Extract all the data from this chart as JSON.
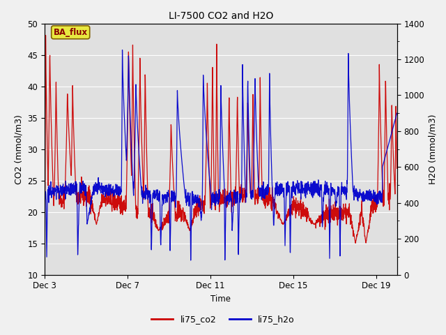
{
  "title": "LI-7500 CO2 and H2O",
  "xlabel": "Time",
  "ylabel_left": "CO2 (mmol/m3)",
  "ylabel_right": "H2O (mmol/m3)",
  "ylim_left": [
    10,
    50
  ],
  "ylim_right": [
    0,
    1400
  ],
  "yticks_left": [
    10,
    15,
    20,
    25,
    30,
    35,
    40,
    45,
    50
  ],
  "yticks_right": [
    0,
    200,
    400,
    600,
    800,
    1000,
    1200,
    1400
  ],
  "xtick_labels": [
    "Dec 3",
    "Dec 7",
    "Dec 11",
    "Dec 15",
    "Dec 19"
  ],
  "xtick_positions": [
    0,
    4,
    8,
    12,
    16
  ],
  "xlim": [
    0,
    17
  ],
  "fig_bg_color": "#f0f0f0",
  "plot_bg_color": "#e0e0e0",
  "legend_label_co2": "li75_co2",
  "legend_label_h2o": "li75_h2o",
  "color_co2": "#cc0000",
  "color_h2o": "#0000cc",
  "annotation_text": "BA_flux",
  "annotation_bg": "#e8e840",
  "annotation_border": "#806000",
  "annotation_text_color": "#880000",
  "seed": 42
}
